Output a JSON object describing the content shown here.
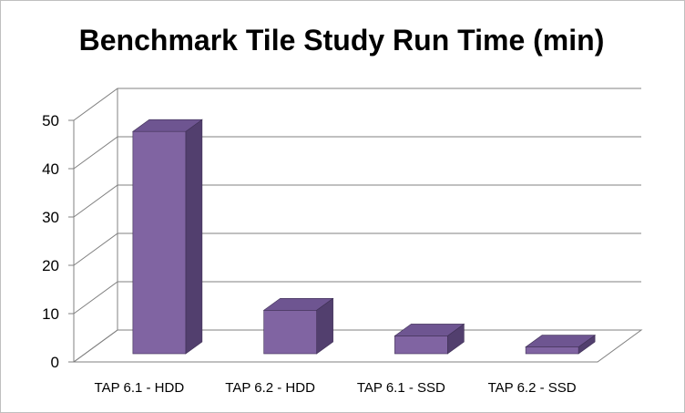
{
  "chart_data": {
    "type": "bar",
    "title": "Benchmark Tile Study Run Time (min)",
    "categories": [
      "TAP 6.1 - HDD",
      "TAP 6.2 - HDD",
      "TAP 6.1 - SSD",
      "TAP 6.2 - SSD"
    ],
    "series": [
      {
        "values": [
          46,
          9,
          3.7,
          1.4
        ]
      }
    ],
    "yticks": [
      "0",
      "10",
      "20",
      "30",
      "40",
      "50"
    ],
    "ylim": [
      0,
      50
    ],
    "grid": true,
    "legend": "none",
    "style": "3d-column",
    "colors": {
      "bar_front": "#8064a2",
      "bar_top": "#6e5591",
      "bar_side": "#523f6e",
      "gridline": "#808080",
      "frame": "#bfbfbf"
    }
  }
}
